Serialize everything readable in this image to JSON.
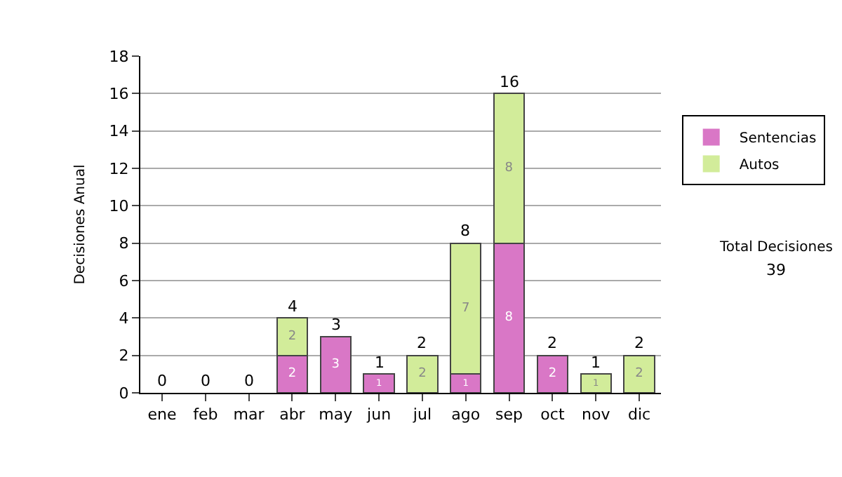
{
  "chart_data": {
    "type": "bar",
    "stacked": true,
    "ylabel": "Decisiones Anual",
    "categories": [
      "ene",
      "feb",
      "mar",
      "abr",
      "may",
      "jun",
      "jul",
      "ago",
      "sep",
      "oct",
      "nov",
      "dic"
    ],
    "series": [
      {
        "name": "Sentencias",
        "color": "#d977c6",
        "values": [
          0,
          0,
          0,
          2,
          3,
          1,
          0,
          1,
          8,
          2,
          0,
          0
        ],
        "value_labels": [
          null,
          null,
          null,
          "2",
          "3",
          "1",
          null,
          "1",
          "8",
          "2",
          null,
          null
        ]
      },
      {
        "name": "Autos",
        "color": "#d2ec9a",
        "values": [
          0,
          0,
          0,
          2,
          0,
          0,
          2,
          7,
          8,
          0,
          1,
          2
        ],
        "value_labels": [
          null,
          null,
          null,
          "2",
          null,
          null,
          "2",
          "7",
          "8",
          null,
          "1",
          "2"
        ]
      }
    ],
    "totals": [
      "0",
      "0",
      "0",
      "4",
      "3",
      "1",
      "2",
      "8",
      "16",
      "2",
      "1",
      "2"
    ],
    "ylim": [
      0,
      18
    ],
    "yticks": [
      0,
      2,
      4,
      6,
      8,
      10,
      12,
      14,
      16,
      18
    ],
    "grid": "y",
    "legend": "right",
    "annotations": [
      "Total Decisiones",
      "39"
    ]
  }
}
